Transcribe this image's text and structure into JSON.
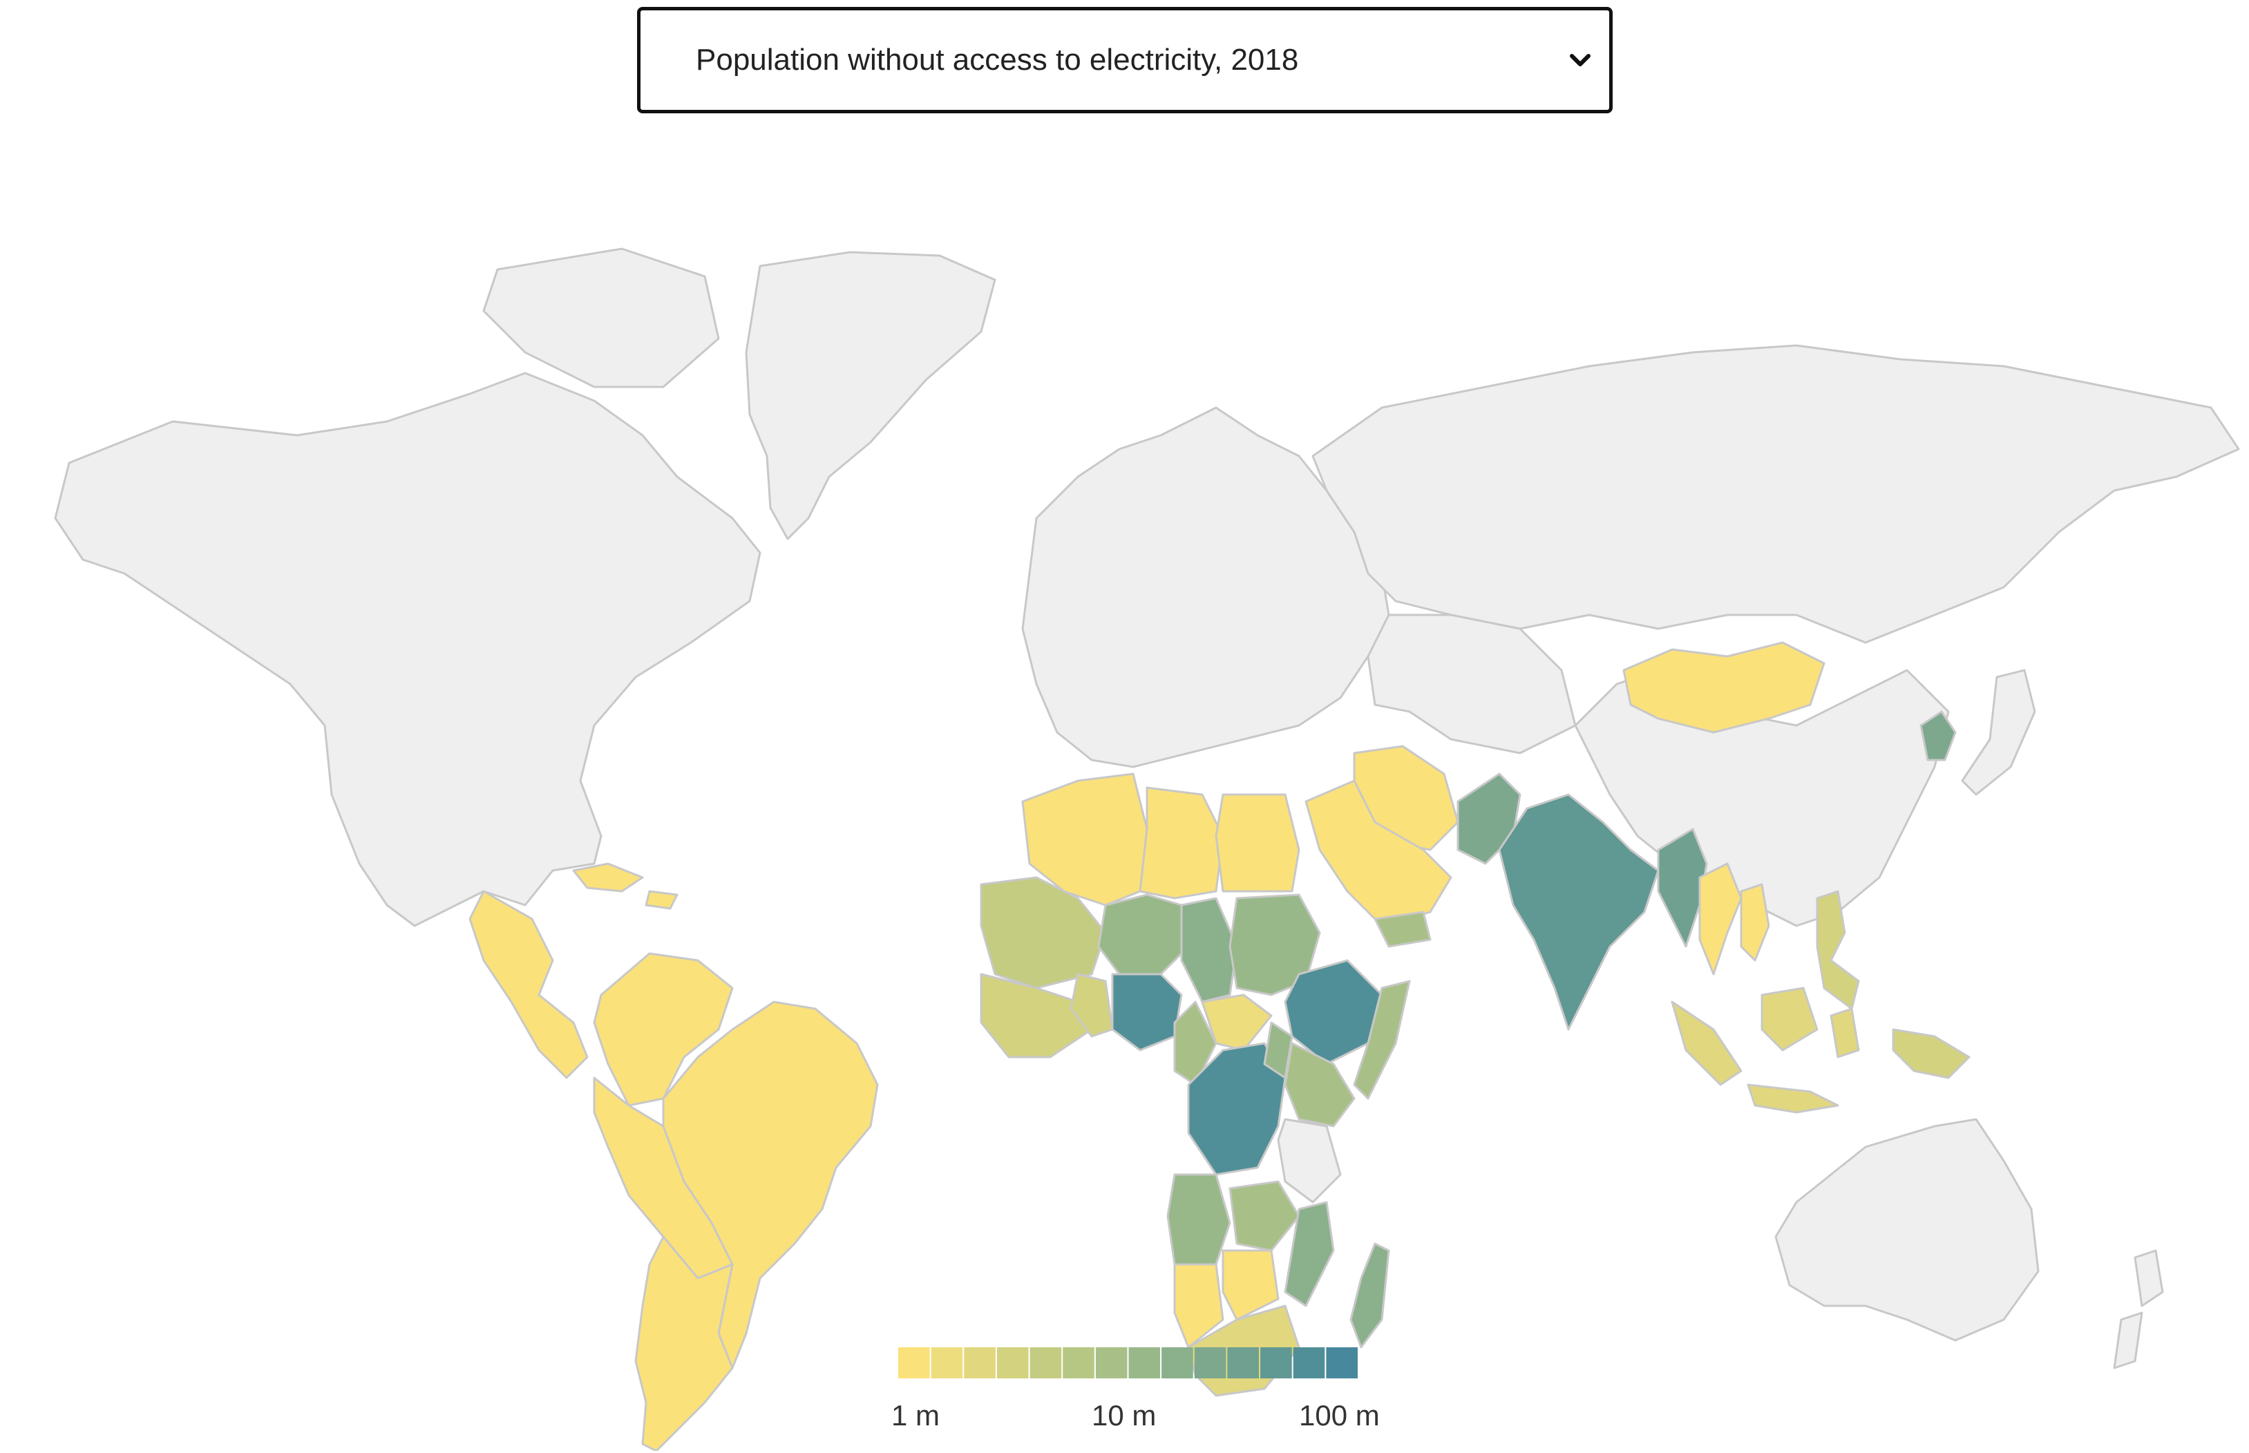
{
  "indicator_select": {
    "selected": "Population without access to electricity, 2018",
    "icon": "chevron-down-icon"
  },
  "map": {
    "no_data_color": "#efefef",
    "border_color": "#c8c8c8",
    "countries": [
      {
        "name": "Greenland",
        "bucket": null
      },
      {
        "name": "North America",
        "bucket": null
      },
      {
        "name": "Russia",
        "bucket": null
      },
      {
        "name": "China",
        "bucket": null
      },
      {
        "name": "Europe",
        "bucket": null
      },
      {
        "name": "Australia",
        "bucket": null
      },
      {
        "name": "Mongolia",
        "bucket": 0
      },
      {
        "name": "North Korea",
        "bucket": 9
      },
      {
        "name": "India",
        "bucket": 11
      },
      {
        "name": "Pakistan",
        "bucket": 9
      },
      {
        "name": "Myanmar",
        "bucket": 10
      },
      {
        "name": "Nigeria",
        "bucket": 12
      },
      {
        "name": "Ethiopia",
        "bucket": 12
      },
      {
        "name": "DR Congo",
        "bucket": 12
      },
      {
        "name": "Tanzania",
        "bucket": null
      },
      {
        "name": "Madagascar",
        "bucket": 8
      },
      {
        "name": "Mozambique",
        "bucket": 8
      },
      {
        "name": "Angola",
        "bucket": 7
      },
      {
        "name": "Sudan",
        "bucket": 7
      },
      {
        "name": "Niger",
        "bucket": 7
      },
      {
        "name": "Chad",
        "bucket": 8
      },
      {
        "name": "Mali",
        "bucket": 4
      },
      {
        "name": "South Africa",
        "bucket": 2
      },
      {
        "name": "Brazil",
        "bucket": 0
      },
      {
        "name": "Argentina",
        "bucket": 0
      },
      {
        "name": "Indonesia",
        "bucket": 2
      },
      {
        "name": "Philippines",
        "bucket": 3
      },
      {
        "name": "Papua New Guinea",
        "bucket": 3
      },
      {
        "name": "Vietnam",
        "bucket": 0
      },
      {
        "name": "Thailand",
        "bucket": 0
      },
      {
        "name": "Algeria",
        "bucket": 0
      },
      {
        "name": "Libya",
        "bucket": 0
      },
      {
        "name": "Egypt",
        "bucket": 0
      },
      {
        "name": "Saudi Arabia",
        "bucket": 0
      },
      {
        "name": "Iran",
        "bucket": 0
      },
      {
        "name": "Yemen",
        "bucket": 6
      },
      {
        "name": "Kenya",
        "bucket": 6
      },
      {
        "name": "Uganda",
        "bucket": 7
      },
      {
        "name": "Zambia",
        "bucket": 6
      },
      {
        "name": "Namibia",
        "bucket": 0
      },
      {
        "name": "Botswana",
        "bucket": 0
      },
      {
        "name": "Central African Republic",
        "bucket": 1
      },
      {
        "name": "Cameroon",
        "bucket": 6
      },
      {
        "name": "Ghana",
        "bucket": 3
      },
      {
        "name": "West Africa coast",
        "bucket": 3
      },
      {
        "name": "Central America",
        "bucket": 0
      },
      {
        "name": "Colombia",
        "bucket": 0
      },
      {
        "name": "Peru",
        "bucket": 0
      },
      {
        "name": "Caribbean",
        "bucket": 0
      }
    ]
  },
  "legend": {
    "colors": [
      "#fbe17a",
      "#eedd7d",
      "#e1d77e",
      "#d3d27f",
      "#c4cc81",
      "#b6c784",
      "#a8c087",
      "#98b889",
      "#8bb08c",
      "#7da88e",
      "#6fa090",
      "#609893",
      "#518f98",
      "#47889c"
    ],
    "labels": [
      "1 m",
      "10 m",
      "100 m"
    ]
  }
}
